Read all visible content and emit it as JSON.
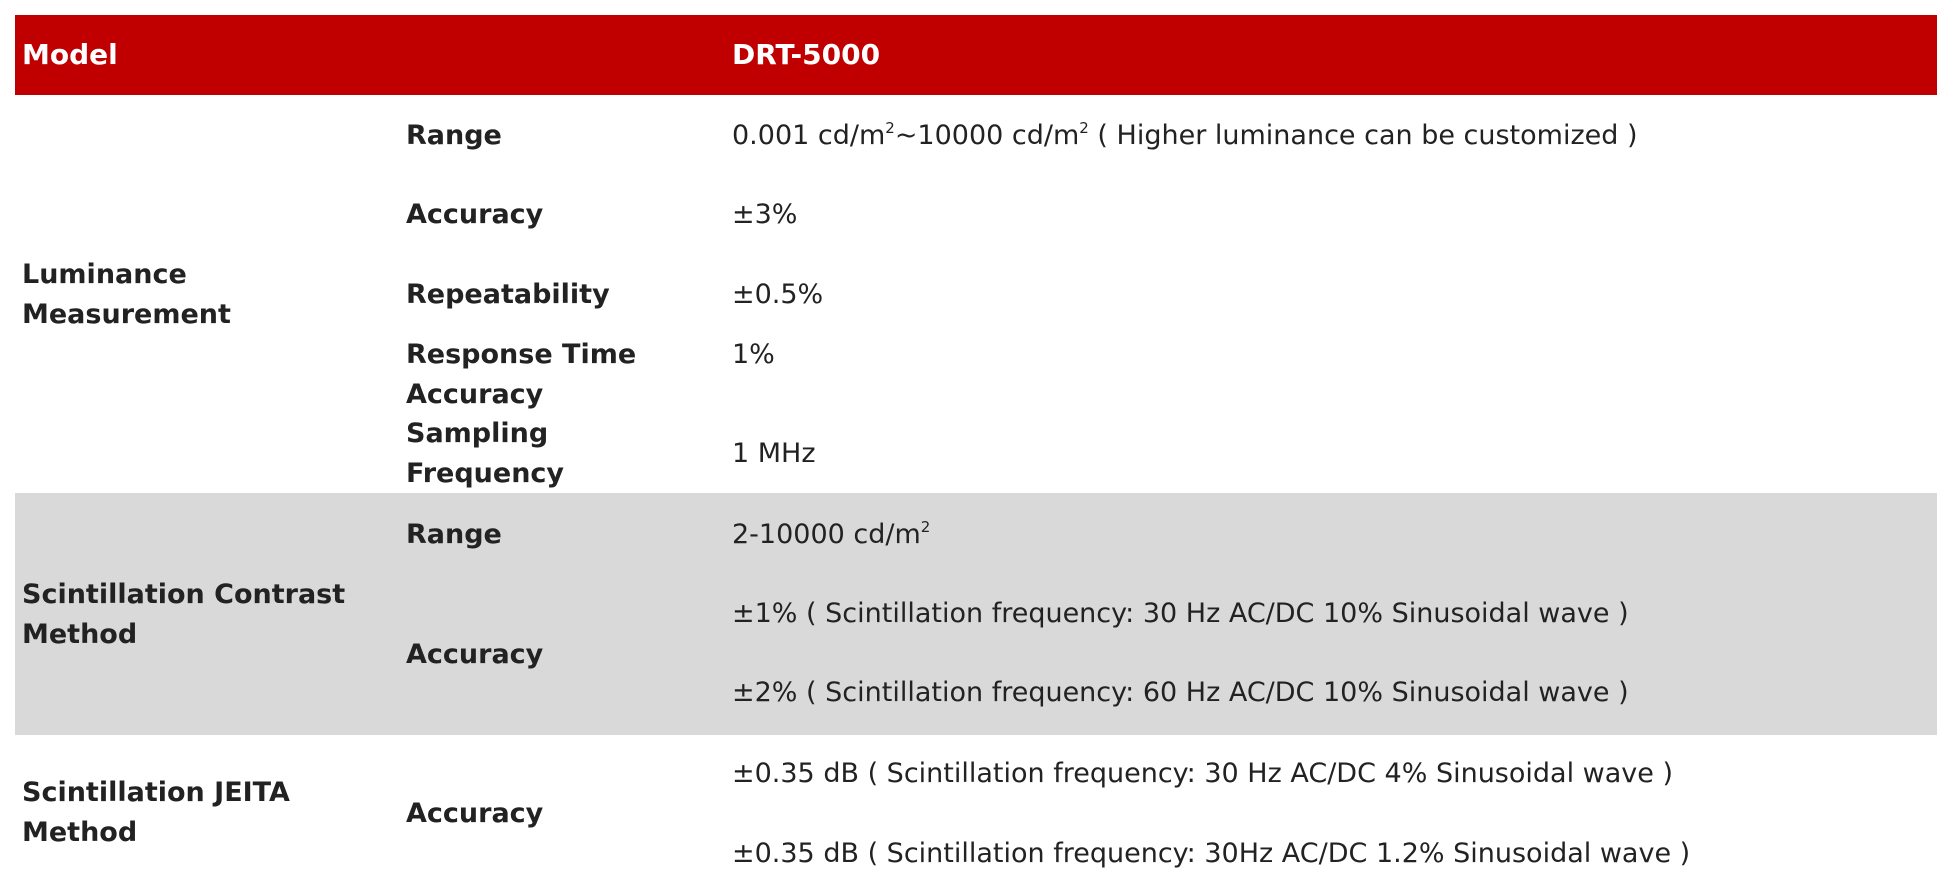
{
  "header": {
    "col1": "Model",
    "col3": "DRT-5000"
  },
  "colors": {
    "header_bg": "#c00000",
    "band_bg": "#d9d9d9"
  },
  "luminance": {
    "group": [
      "Luminance",
      "Measurement"
    ],
    "range_label": "Range",
    "range_parts": [
      "0.001 cd/m",
      "2",
      "~10000 cd/m",
      "2",
      " ( Higher luminance can be customized )"
    ],
    "accuracy_label": "Accuracy",
    "accuracy_value": "±3%",
    "repeatability_label": "Repeatability",
    "repeatability_value": "±0.5%",
    "response_label": [
      "Response Time",
      "Accuracy"
    ],
    "response_value": "1%",
    "sampling_label": [
      "Sampling",
      "Frequency"
    ],
    "sampling_value": "1 MHz"
  },
  "contrast": {
    "group": [
      "Scintillation Contrast",
      "Method"
    ],
    "range_label": "Range",
    "range_parts": [
      "2-10000 cd/m",
      "2"
    ],
    "accuracy_label": "Accuracy",
    "accuracy_values": [
      "±1% ( Scintillation frequency: 30 Hz AC/DC 10% Sinusoidal wave )",
      "±2% ( Scintillation frequency: 60 Hz AC/DC 10% Sinusoidal wave )"
    ]
  },
  "jeita": {
    "group": [
      "Scintillation JEITA",
      "Method"
    ],
    "accuracy_label": "Accuracy",
    "accuracy_values": [
      "±0.35 dB ( Scintillation frequency: 30 Hz AC/DC 4% Sinusoidal wave )",
      "±0.35 dB ( Scintillation frequency: 30Hz AC/DC 1.2% Sinusoidal wave )"
    ]
  }
}
